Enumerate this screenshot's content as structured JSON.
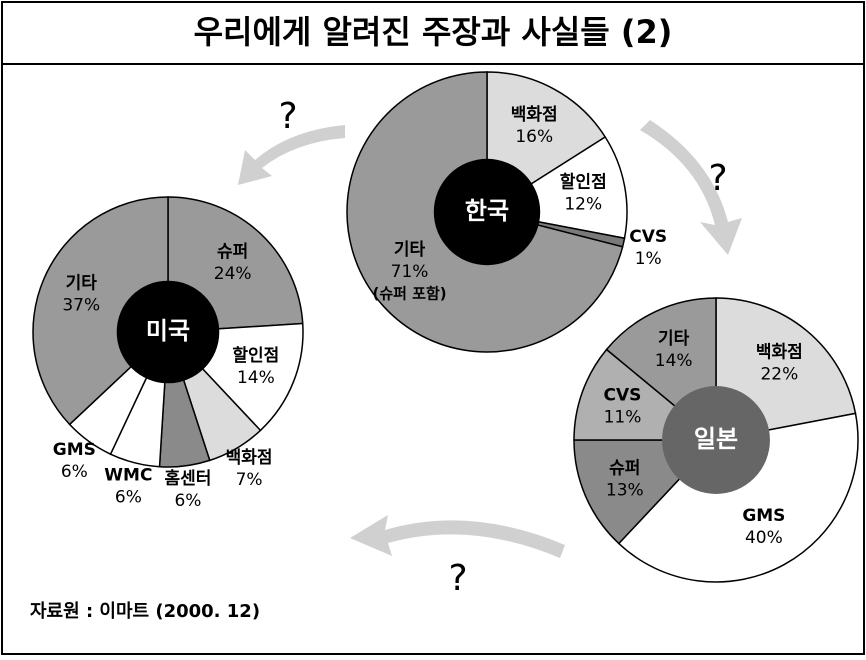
{
  "title": "우리에게 알려진 주장과 사실들 (2)",
  "source": "자료원 : 이마트 (2000. 12)",
  "question_marks": [
    "?",
    "?",
    "?"
  ],
  "chart_data": [
    {
      "type": "pie",
      "title": "한국",
      "categories": [
        "백화점",
        "할인점",
        "CVS",
        "기타"
      ],
      "values": [
        16,
        12,
        1,
        71
      ],
      "value_labels": [
        "16%",
        "12%",
        "1%",
        "71%"
      ],
      "category_notes": [
        null,
        null,
        null,
        "(슈퍼 포함)"
      ],
      "colors": [
        "#dcdcdc",
        "#ffffff",
        "#7a7a7a",
        "#9a9a9a"
      ],
      "center_color": "#000000"
    },
    {
      "type": "pie",
      "title": "미국",
      "categories": [
        "슈퍼",
        "할인점",
        "백화점",
        "홈센터",
        "WMC",
        "GMS",
        "기타"
      ],
      "values": [
        24,
        14,
        7,
        6,
        6,
        6,
        37
      ],
      "value_labels": [
        "24%",
        "14%",
        "7%",
        "6%",
        "6%",
        "6%",
        "37%"
      ],
      "colors": [
        "#9a9a9a",
        "#ffffff",
        "#dcdcdc",
        "#8a8a8a",
        "#ffffff",
        "#ffffff",
        "#9a9a9a"
      ],
      "center_color": "#000000"
    },
    {
      "type": "pie",
      "title": "일본",
      "categories": [
        "백화점",
        "GMS",
        "슈퍼",
        "CVS",
        "기타"
      ],
      "values": [
        22,
        40,
        13,
        11,
        14
      ],
      "value_labels": [
        "22%",
        "40%",
        "13%",
        "11%",
        "14%"
      ],
      "colors": [
        "#dcdcdc",
        "#ffffff",
        "#8a8a8a",
        "#b0b0b0",
        "#9a9a9a"
      ],
      "center_color": "#666666"
    }
  ]
}
